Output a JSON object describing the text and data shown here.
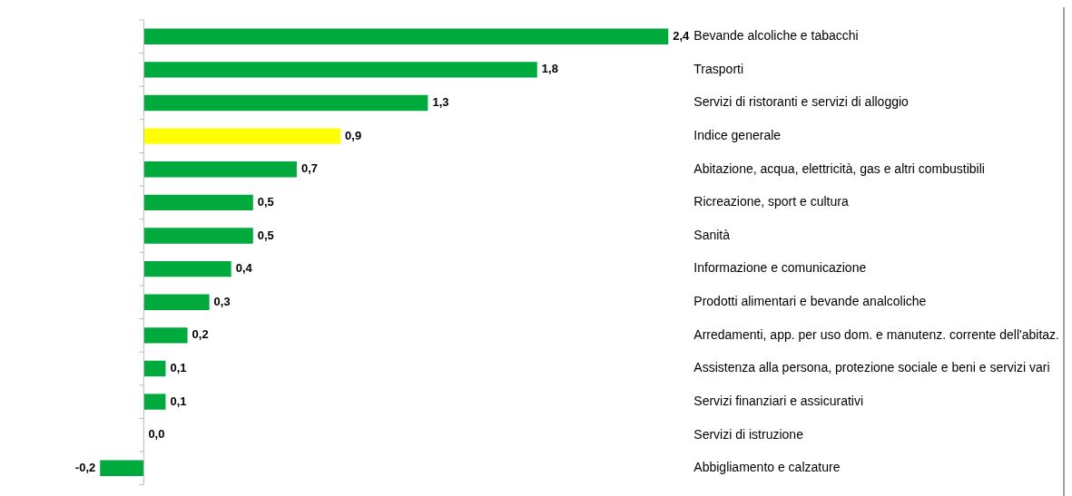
{
  "chart_data": {
    "type": "bar",
    "orientation": "horizontal",
    "categories": [
      "Bevande alcoliche e tabacchi",
      "Trasporti",
      "Servizi di ristoranti e servizi di alloggio",
      "Indice generale",
      "Abitazione, acqua, elettricità, gas e altri combustibili",
      "Ricreazione, sport e cultura",
      "Sanità",
      "Informazione e comunicazione",
      "Prodotti alimentari e bevande analcoliche",
      "Arredamenti, app. per uso dom. e manutenz. corrente dell'abitaz.",
      "Assistenza alla persona, protezione sociale e beni e servizi vari",
      "Servizi finanziari e assicurativi",
      "Servizi di istruzione",
      "Abbigliamento e calzature"
    ],
    "values": [
      2.4,
      1.8,
      1.3,
      0.9,
      0.7,
      0.5,
      0.5,
      0.4,
      0.3,
      0.2,
      0.1,
      0.1,
      0.0,
      -0.2
    ],
    "colors": [
      "#00aa3c",
      "#00aa3c",
      "#00aa3c",
      "#ffff00",
      "#00aa3c",
      "#00aa3c",
      "#00aa3c",
      "#00aa3c",
      "#00aa3c",
      "#00aa3c",
      "#00aa3c",
      "#00aa3c",
      "#00aa3c",
      "#00aa3c"
    ],
    "value_labels": [
      "2,4",
      "1,8",
      "1,3",
      "0,9",
      "0,7",
      "0,5",
      "0,5",
      "0,4",
      "0,3",
      "0,2",
      "0,1",
      "0,1",
      "0,0",
      "-0,2"
    ]
  }
}
